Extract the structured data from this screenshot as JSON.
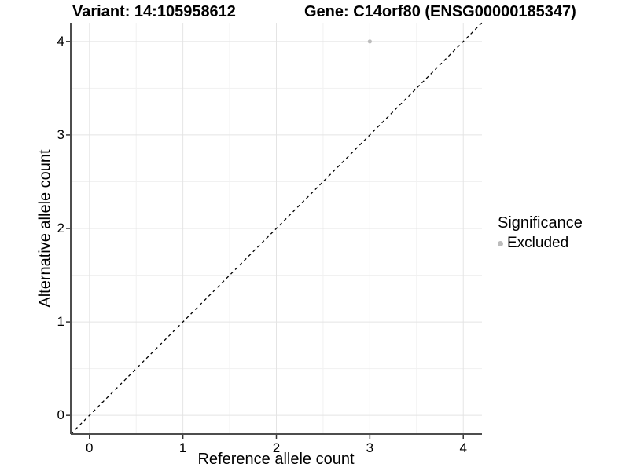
{
  "header": {
    "variant_title": "Variant: 14:105958612",
    "gene_title": "Gene: C14orf80 (ENSG00000185347)"
  },
  "legend": {
    "title": "Significance",
    "items": [
      {
        "label": "Excluded",
        "color": "#bcbcbc"
      }
    ]
  },
  "colors": {
    "background": "#ffffff",
    "grid_major": "#e4e4e4",
    "grid_minor": "#f1f1f1",
    "axis_line": "#4d4d4d",
    "tick_mark": "#333333",
    "point": "#bcbcbc",
    "reference_line": "#000000",
    "text": "#000000"
  },
  "chart_data": {
    "type": "scatter",
    "title": "Variant: 14:105958612    Gene: C14orf80 (ENSG00000185347)",
    "xlabel": "Reference allele count",
    "ylabel": "Alternative allele count",
    "xlim": [
      -0.2,
      4.2
    ],
    "ylim": [
      -0.2,
      4.2
    ],
    "x_ticks": [
      0,
      1,
      2,
      3,
      4
    ],
    "y_ticks": [
      0,
      1,
      2,
      3,
      4
    ],
    "x_tick_labels": [
      "0",
      "1",
      "2",
      "3",
      "4"
    ],
    "y_tick_labels": [
      "0",
      "1",
      "2",
      "3",
      "4"
    ],
    "minor_ticks": [
      0.5,
      1.5,
      2.5,
      3.5
    ],
    "grid": "major and minor gridlines on, white background",
    "legend_position": "right",
    "series": [
      {
        "name": "Excluded",
        "color": "#bcbcbc",
        "points": [
          {
            "x": 3,
            "y": 4
          }
        ]
      }
    ],
    "reference_line": {
      "equation": "y = x",
      "style": "dashed",
      "color": "#000000"
    }
  }
}
